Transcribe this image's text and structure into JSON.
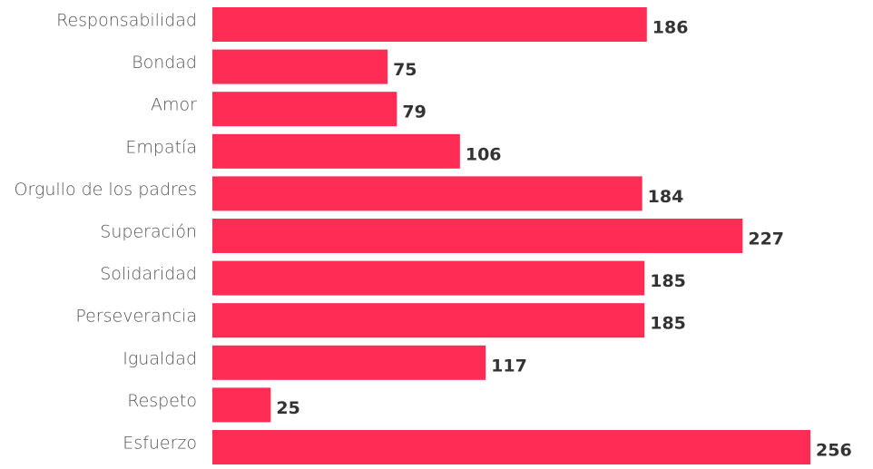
{
  "chart_data": {
    "type": "barh",
    "categories": [
      "Responsabilidad",
      "Bondad",
      "Amor",
      "Empatía",
      "Orgullo de los padres",
      "Superación",
      "Solidaridad",
      "Perseverancia",
      "Igualdad",
      "Respeto",
      "Esfuerzo"
    ],
    "values": [
      186,
      75,
      79,
      106,
      184,
      227,
      185,
      185,
      117,
      25,
      256
    ],
    "color": "#ff2d55"
  }
}
